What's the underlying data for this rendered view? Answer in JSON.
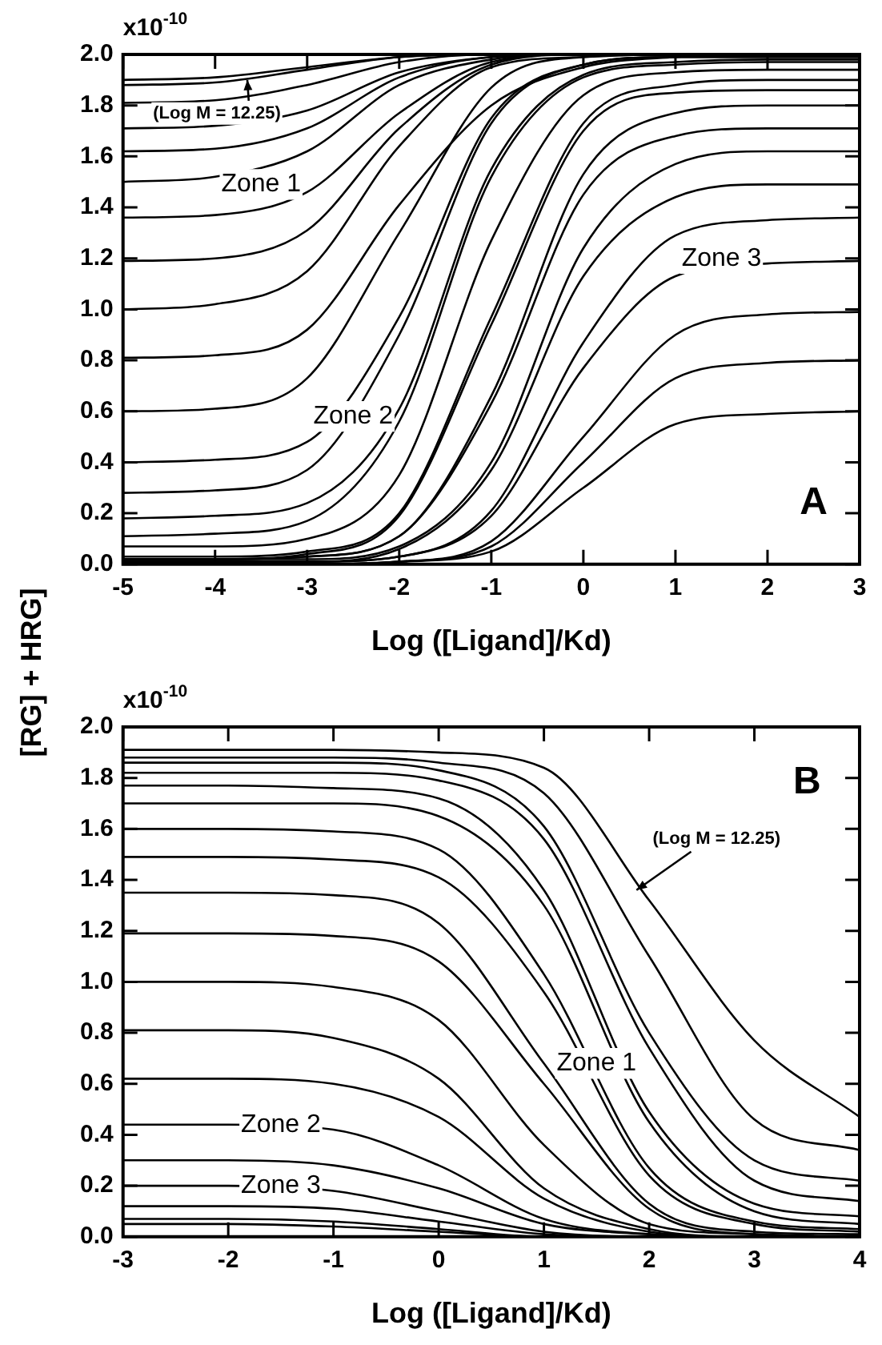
{
  "chart_data": [
    {
      "type": "line",
      "color": "#000000",
      "xlabel": "Log ([Ligand]/Kd)",
      "ylabel": "[RG] + HRG]",
      "marker": "none",
      "line_style": "solid",
      "x": [
        -5,
        -4,
        -3,
        -2,
        -1,
        0,
        1,
        2,
        3
      ],
      "xlim": [
        -5,
        3
      ],
      "xticks": [
        -5,
        -4,
        -3,
        -2,
        -1,
        0,
        1,
        2,
        3
      ],
      "ylim": [
        0,
        2
      ],
      "yticks": [
        {
          "value": 0,
          "label": "0.0"
        },
        {
          "value": 0.2,
          "label": "0.2"
        },
        {
          "value": 0.4,
          "label": "0.4"
        },
        {
          "value": 0.6,
          "label": "0.6"
        },
        {
          "value": 0.8,
          "label": "0.8"
        },
        {
          "value": 1,
          "label": "1.0"
        },
        {
          "value": 1.2,
          "label": "1.2"
        },
        {
          "value": 1.4,
          "label": "1.4"
        },
        {
          "value": 1.6,
          "label": "1.6"
        },
        {
          "value": 1.8,
          "label": "1.8"
        },
        {
          "value": 2,
          "label": "2.0"
        }
      ],
      "annotations": [
        "Zone 1",
        "Zone 2",
        "Zone 3",
        "A",
        "x10$^{-10}$",
        {
          "text": "(Log M = 12.25)",
          "x": -3.65,
          "y": 1.9
        }
      ],
      "series": [
        {
          "values": [
            1.9,
            1.91,
            1.95,
            1.99,
            2.0,
            2.0,
            2.0,
            2.0,
            2.0
          ]
        },
        {
          "values": [
            1.88,
            1.89,
            1.94,
            1.99,
            2.0,
            2.0,
            2.0,
            2.0,
            2.0
          ]
        },
        {
          "values": [
            1.81,
            1.82,
            1.88,
            1.97,
            2.0,
            2.0,
            2.0,
            2.0,
            2.0
          ]
        },
        {
          "values": [
            1.71,
            1.72,
            1.78,
            1.93,
            1.99,
            2.0,
            2.0,
            2.0,
            2.0
          ]
        },
        {
          "values": [
            1.62,
            1.63,
            1.71,
            1.91,
            1.99,
            2.0,
            2.0,
            2.0,
            2.0
          ]
        },
        {
          "values": [
            1.5,
            1.52,
            1.62,
            1.88,
            1.98,
            2.0,
            2.0,
            2.0,
            2.0
          ]
        },
        {
          "values": [
            1.36,
            1.37,
            1.46,
            1.77,
            1.97,
            2.0,
            2.0,
            2.0,
            2.0
          ]
        },
        {
          "values": [
            1.19,
            1.2,
            1.31,
            1.71,
            1.96,
            2.0,
            2.0,
            2.0,
            2.0
          ]
        },
        {
          "values": [
            1.0,
            1.02,
            1.15,
            1.64,
            1.95,
            1.99,
            2.0,
            2.0,
            2.0
          ]
        },
        {
          "values": [
            0.81,
            0.82,
            0.92,
            1.41,
            1.8,
            1.95,
            1.99,
            2.0,
            2.0
          ]
        },
        {
          "values": [
            0.6,
            0.61,
            0.73,
            1.3,
            1.87,
            1.99,
            2.0,
            2.0,
            2.0
          ]
        },
        {
          "values": [
            0.4,
            0.41,
            0.48,
            0.97,
            1.75,
            1.96,
            1.99,
            1.99,
            1.99
          ]
        },
        {
          "values": [
            0.28,
            0.29,
            0.37,
            0.9,
            1.73,
            1.96,
            1.99,
            1.99,
            1.99
          ]
        },
        {
          "values": [
            0.18,
            0.19,
            0.24,
            0.61,
            1.55,
            1.92,
            1.97,
            1.98,
            1.98
          ]
        },
        {
          "values": [
            0.11,
            0.12,
            0.17,
            0.56,
            1.52,
            1.91,
            1.96,
            1.97,
            1.97
          ]
        },
        {
          "values": [
            0.07,
            0.07,
            0.1,
            0.35,
            1.27,
            1.84,
            1.93,
            1.94,
            1.94
          ]
        },
        {
          "values": [
            0.03,
            0.03,
            0.05,
            0.2,
            0.97,
            1.73,
            1.88,
            1.9,
            1.9
          ]
        },
        {
          "values": [
            0.02,
            0.02,
            0.04,
            0.19,
            0.94,
            1.7,
            1.85,
            1.86,
            1.86
          ]
        },
        {
          "values": [
            0.02,
            0.02,
            0.03,
            0.11,
            0.66,
            1.53,
            1.77,
            1.8,
            1.8
          ]
        },
        {
          "values": [
            0.02,
            0.02,
            0.03,
            0.11,
            0.63,
            1.45,
            1.68,
            1.71,
            1.71
          ]
        },
        {
          "values": [
            0.02,
            0.02,
            0.02,
            0.07,
            0.4,
            1.24,
            1.57,
            1.62,
            1.62
          ]
        },
        {
          "values": [
            0.01,
            0.01,
            0.01,
            0.06,
            0.37,
            1.13,
            1.44,
            1.49,
            1.49
          ]
        },
        {
          "values": [
            0.01,
            0.01,
            0.01,
            0.03,
            0.21,
            0.87,
            1.29,
            1.35,
            1.36
          ]
        },
        {
          "values": [
            0.01,
            0.01,
            0.01,
            0.03,
            0.19,
            0.77,
            1.13,
            1.18,
            1.19
          ]
        },
        {
          "values": [
            0,
            0,
            0,
            0.01,
            0.09,
            0.5,
            0.9,
            0.98,
            0.99
          ]
        },
        {
          "values": [
            0,
            0,
            0,
            0.01,
            0.07,
            0.4,
            0.73,
            0.79,
            0.8
          ]
        },
        {
          "values": [
            0,
            0,
            0,
            0.01,
            0.05,
            0.3,
            0.55,
            0.59,
            0.6
          ]
        }
      ]
    },
    {
      "type": "line",
      "color": "#000000",
      "xlabel": "Log ([Ligand]/Kd)",
      "marker": "none",
      "line_style": "solid",
      "x": [
        -3,
        -2,
        -1,
        0,
        1,
        2,
        3,
        4
      ],
      "xlim": [
        -3,
        4
      ],
      "xticks": [
        -3,
        -2,
        -1,
        0,
        1,
        2,
        3,
        4
      ],
      "ylim": [
        0,
        2
      ],
      "yticks": [
        {
          "value": 0,
          "label": "0.0"
        },
        {
          "value": 0.2,
          "label": "0.2"
        },
        {
          "value": 0.4,
          "label": "0.4"
        },
        {
          "value": 0.6,
          "label": "0.6"
        },
        {
          "value": 0.8,
          "label": "0.8"
        },
        {
          "value": 1,
          "label": "1.0"
        },
        {
          "value": 1.2,
          "label": "1.2"
        },
        {
          "value": 1.4,
          "label": "1.4"
        },
        {
          "value": 1.6,
          "label": "1.6"
        },
        {
          "value": 1.8,
          "label": "1.8"
        },
        {
          "value": 2,
          "label": "2.0"
        }
      ],
      "annotations": [
        "Zone 1",
        "Zone 2",
        "Zone 3",
        "B",
        "x10$^{-10}$",
        {
          "text": "(Log M = 12.25)",
          "x": 1.88,
          "y": 1.36
        }
      ],
      "series": [
        {
          "values": [
            1.91,
            1.91,
            1.91,
            1.9,
            1.84,
            1.32,
            0.77,
            0.47
          ]
        },
        {
          "values": [
            1.88,
            1.88,
            1.88,
            1.86,
            1.74,
            1.1,
            0.46,
            0.34
          ]
        },
        {
          "values": [
            1.86,
            1.86,
            1.86,
            1.83,
            1.61,
            0.8,
            0.3,
            0.22
          ]
        },
        {
          "values": [
            1.82,
            1.82,
            1.82,
            1.79,
            1.56,
            0.74,
            0.22,
            0.14
          ]
        },
        {
          "values": [
            1.77,
            1.77,
            1.76,
            1.72,
            1.36,
            0.49,
            0.13,
            0.08
          ]
        },
        {
          "values": [
            1.7,
            1.7,
            1.7,
            1.65,
            1.3,
            0.45,
            0.1,
            0.05
          ]
        },
        {
          "values": [
            1.6,
            1.6,
            1.59,
            1.52,
            1.03,
            0.27,
            0.06,
            0.03
          ]
        },
        {
          "values": [
            1.49,
            1.49,
            1.48,
            1.41,
            0.96,
            0.24,
            0.05,
            0.02
          ]
        },
        {
          "values": [
            1.35,
            1.35,
            1.34,
            1.23,
            0.68,
            0.13,
            0.02,
            0.01
          ]
        },
        {
          "values": [
            1.19,
            1.19,
            1.18,
            1.08,
            0.6,
            0.11,
            0.01,
            0
          ]
        },
        {
          "values": [
            1.0,
            1.0,
            0.98,
            0.85,
            0.36,
            0.05,
            0.01,
            0
          ]
        },
        {
          "values": [
            0.81,
            0.81,
            0.78,
            0.62,
            0.19,
            0.03,
            0,
            0
          ]
        },
        {
          "values": [
            0.62,
            0.62,
            0.6,
            0.47,
            0.15,
            0.02,
            0,
            0
          ]
        },
        {
          "values": [
            0.44,
            0.44,
            0.42,
            0.28,
            0.07,
            0.01,
            0,
            0
          ]
        },
        {
          "values": [
            0.3,
            0.3,
            0.28,
            0.19,
            0.05,
            0.01,
            0,
            0
          ]
        },
        {
          "values": [
            0.2,
            0.2,
            0.18,
            0.1,
            0.02,
            0,
            0,
            0
          ]
        },
        {
          "values": [
            0.12,
            0.12,
            0.11,
            0.06,
            0.01,
            0,
            0,
            0
          ]
        },
        {
          "values": [
            0.07,
            0.07,
            0.06,
            0.03,
            0,
            0,
            0,
            0
          ]
        },
        {
          "values": [
            0.05,
            0.05,
            0.04,
            0.02,
            0,
            0,
            0,
            0
          ]
        }
      ]
    }
  ]
}
